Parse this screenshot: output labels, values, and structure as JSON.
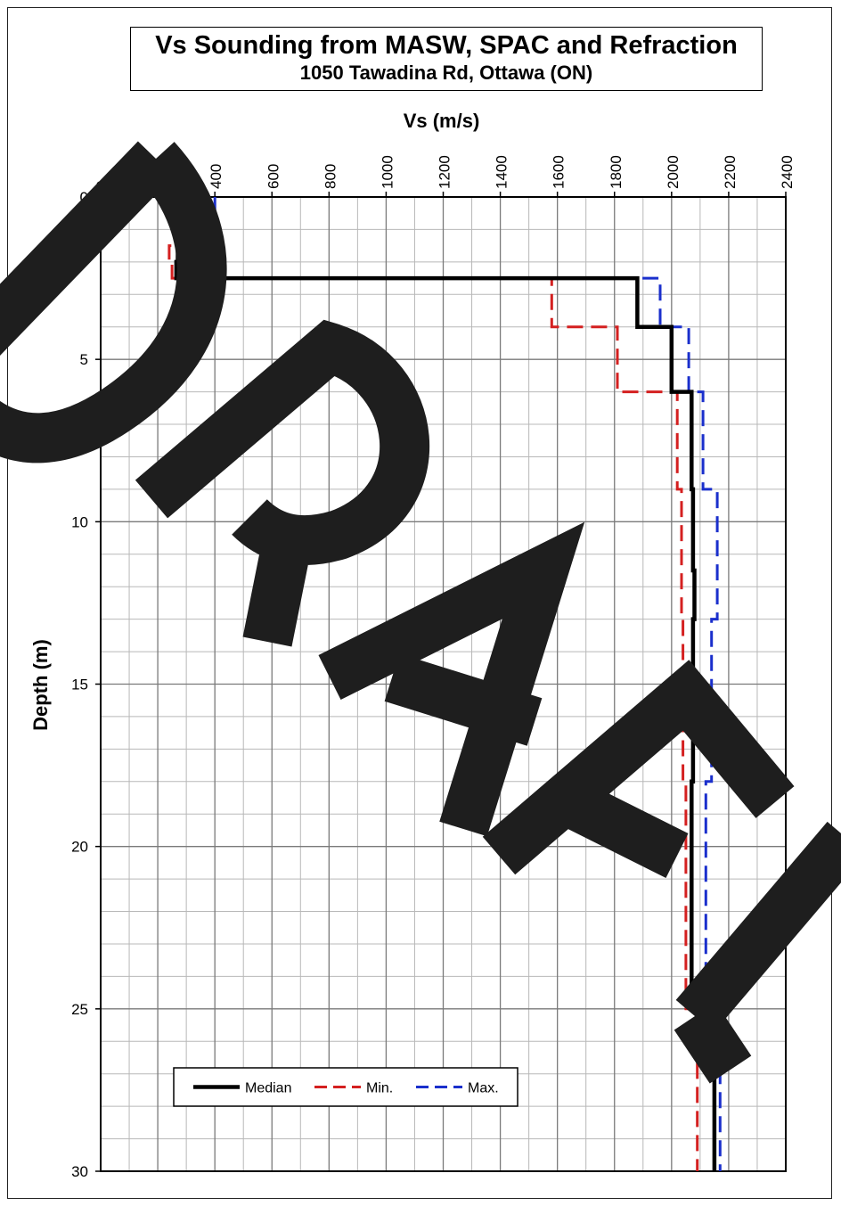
{
  "chart_data": {
    "type": "line",
    "title": "Vs Sounding from MASW, SPAC and Refraction",
    "subtitle": "1050 Tawadina Rd, Ottawa (ON)",
    "xlabel": "Vs (m/s)",
    "ylabel": "Depth (m)",
    "xlim": [
      0,
      2400
    ],
    "ylim": [
      0,
      30
    ],
    "y_inverted": true,
    "x_axis_position": "top",
    "x_ticks": [
      0,
      200,
      400,
      600,
      800,
      1000,
      1200,
      1400,
      1600,
      1800,
      2000,
      2200,
      2400
    ],
    "y_ticks": [
      0,
      5,
      10,
      15,
      20,
      25,
      30
    ],
    "grid": true,
    "legend_position": "bottom-left",
    "series": [
      {
        "name": "Median",
        "color": "#000000",
        "style": "solid",
        "vs": [
          360,
          350,
          270,
          265,
          1880,
          2000,
          2070,
          2075,
          2080,
          2075,
          2070,
          2150
        ],
        "depth_top": [
          0,
          1.0,
          1.5,
          2.0,
          2.5,
          4.0,
          6.0,
          9.0,
          11.5,
          13.0,
          18.0,
          25.0
        ],
        "depth_bottom": [
          1.0,
          1.5,
          2.0,
          2.5,
          4.0,
          6.0,
          9.0,
          11.5,
          13.0,
          18.0,
          25.0,
          30.0
        ]
      },
      {
        "name": "Min.",
        "color": "#d42020",
        "style": "dashed",
        "vs": [
          290,
          310,
          240,
          250,
          1580,
          1810,
          2020,
          2035,
          2040,
          2050,
          2090
        ],
        "depth_top": [
          0,
          1.0,
          1.5,
          2.0,
          2.5,
          4.0,
          6.0,
          9.0,
          13.0,
          18.0,
          25.0
        ],
        "depth_bottom": [
          1.0,
          1.5,
          2.0,
          2.5,
          4.0,
          6.0,
          9.0,
          13.0,
          18.0,
          25.0,
          30.0
        ]
      },
      {
        "name": "Max.",
        "color": "#1a2fcc",
        "style": "dashed",
        "vs": [
          400,
          380,
          400,
          300,
          1960,
          2060,
          2110,
          2160,
          2140,
          2120,
          2170
        ],
        "depth_top": [
          0,
          1.0,
          1.5,
          2.0,
          2.5,
          4.0,
          6.0,
          9.0,
          13.0,
          18.0,
          25.0
        ],
        "depth_bottom": [
          1.0,
          1.5,
          2.0,
          2.5,
          4.0,
          6.0,
          9.0,
          13.0,
          18.0,
          25.0,
          30.0
        ]
      }
    ]
  },
  "watermark": {
    "text": "DRAFT",
    "color": "#1e1e1e"
  }
}
